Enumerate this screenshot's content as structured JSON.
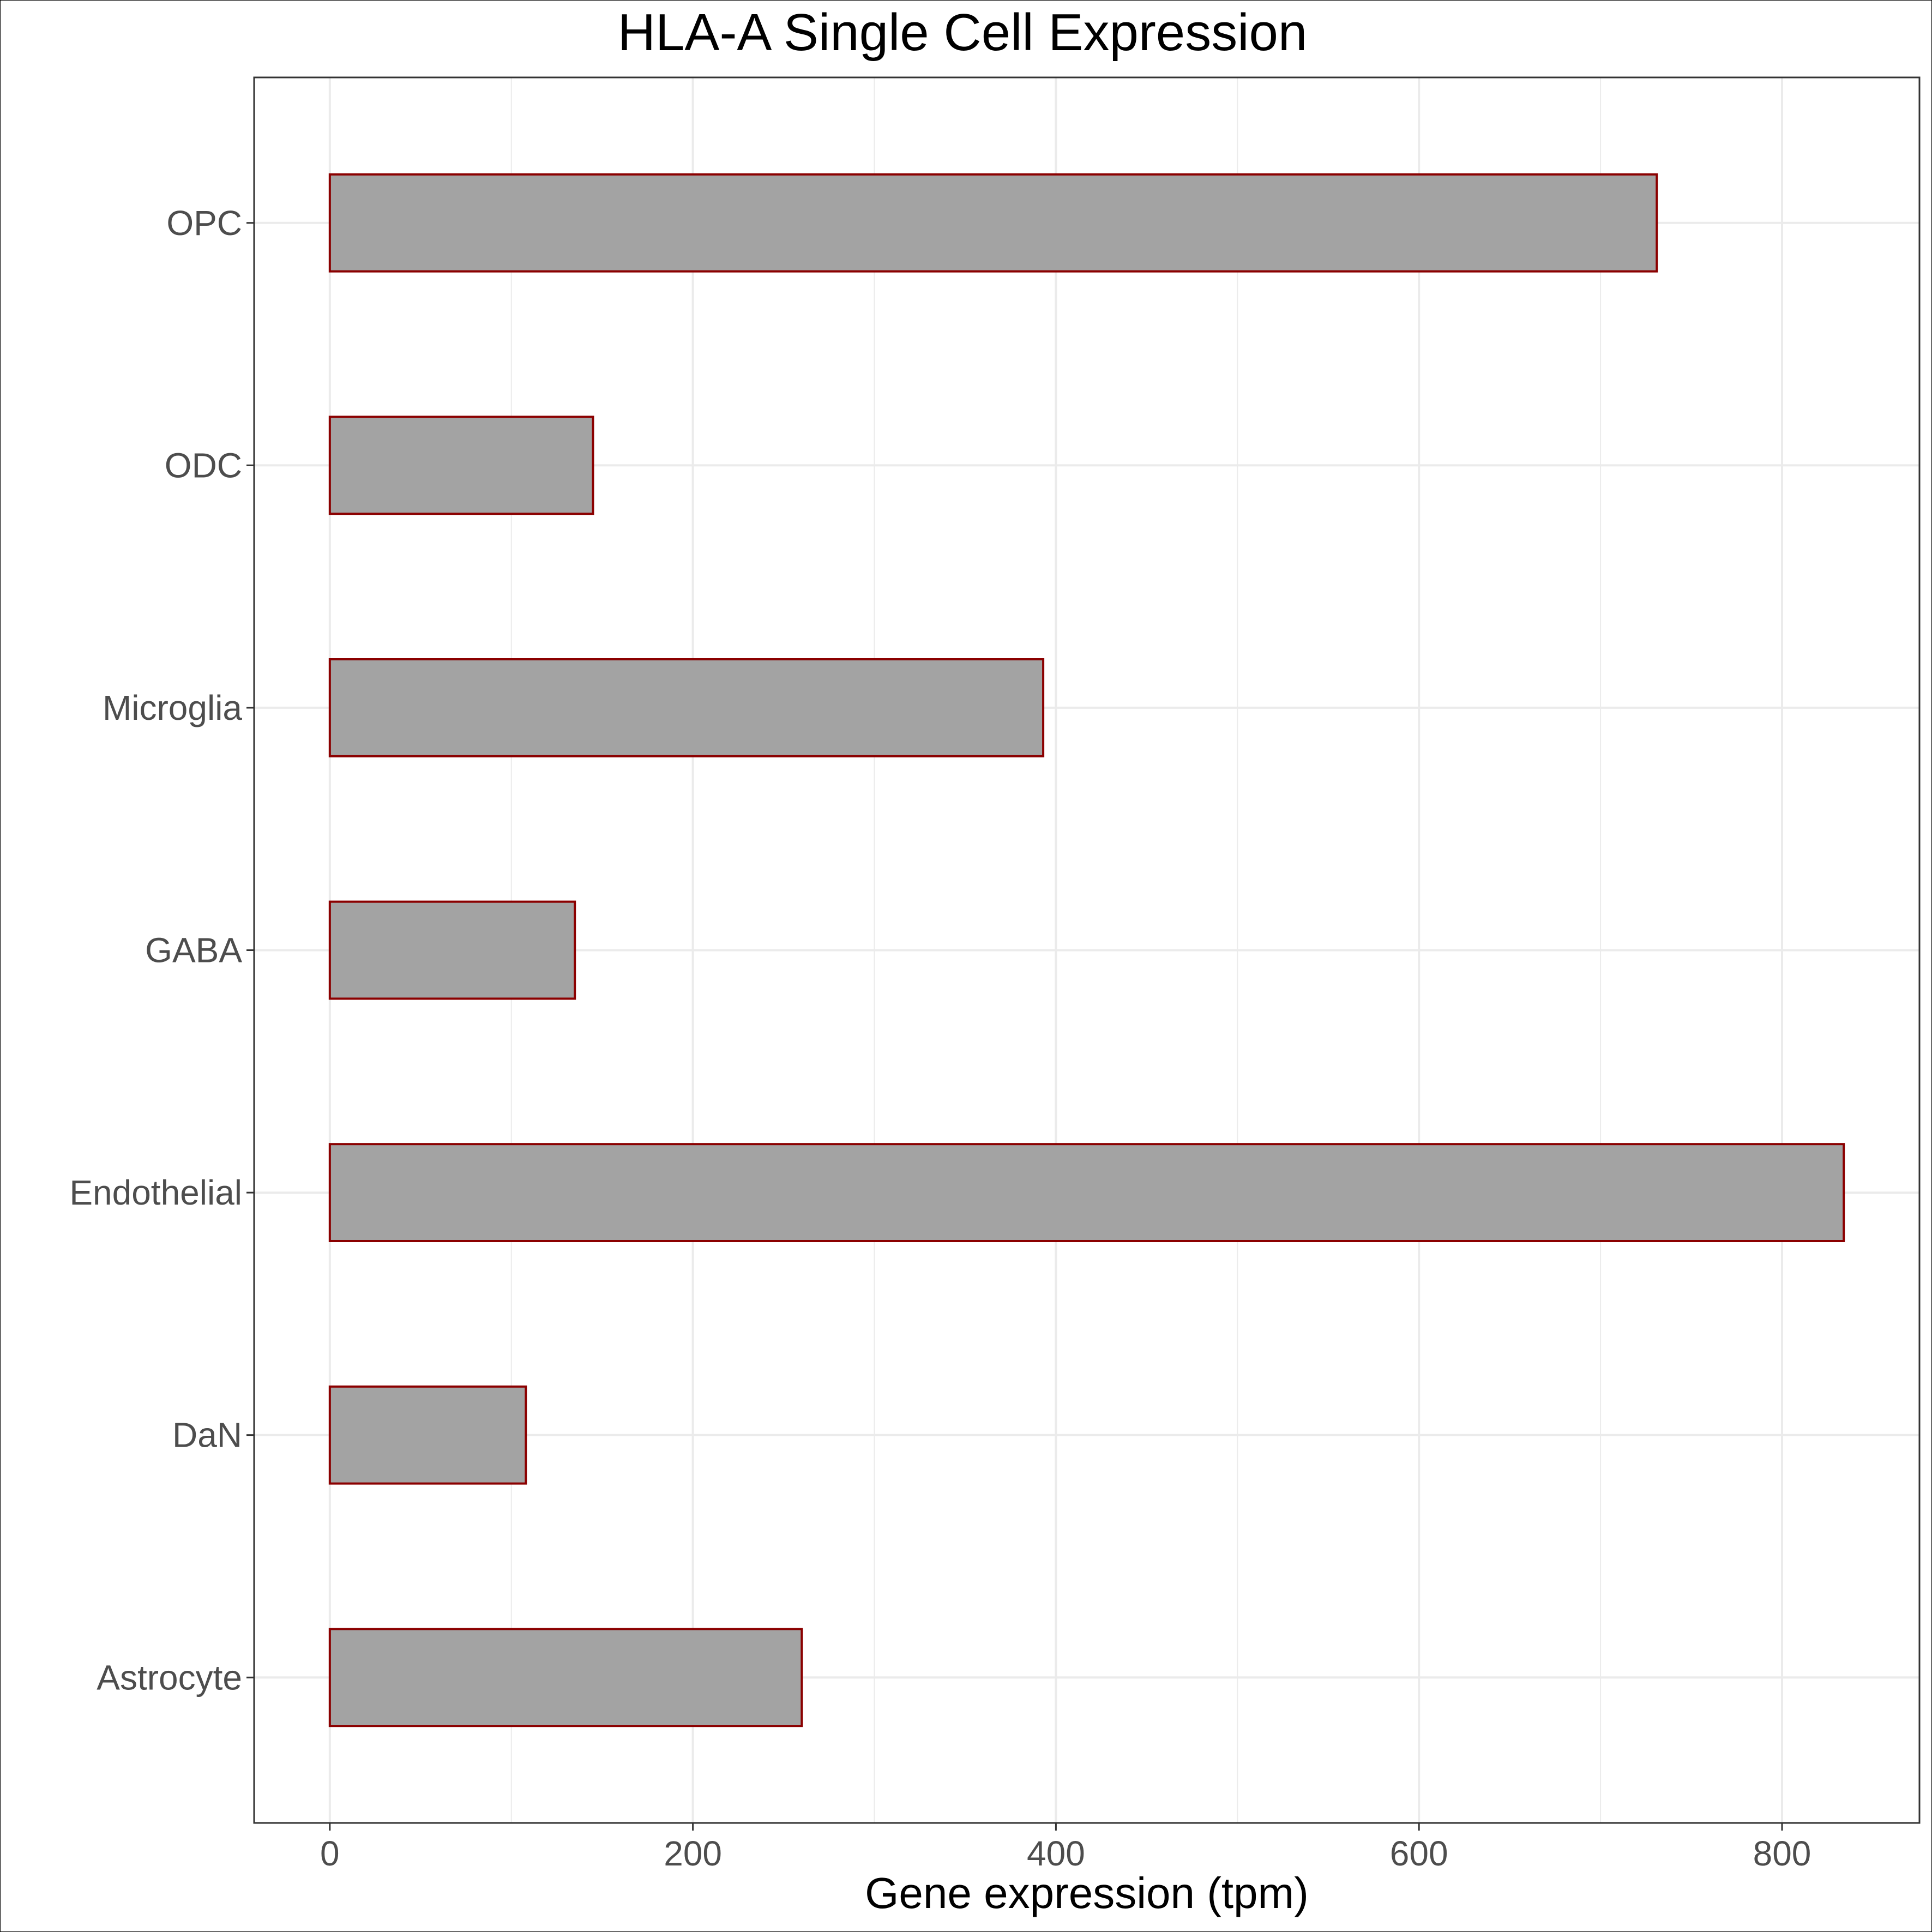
{
  "chart_data": {
    "type": "bar",
    "orientation": "horizontal",
    "title": "HLA-A Single Cell Expression",
    "xlabel": "Gene expression (tpm)",
    "ylabel": "",
    "categories": [
      "Astrocyte",
      "DaN",
      "Endothelial",
      "GABA",
      "Microglia",
      "ODC",
      "OPC"
    ],
    "values": [
      260,
      108,
      834,
      135,
      393,
      145,
      731
    ],
    "xlim": [
      -41.7,
      875.7
    ],
    "xticks": [
      0,
      200,
      400,
      600,
      800
    ],
    "xtick_labels": [
      "0",
      "200",
      "400",
      "600",
      "800"
    ],
    "grid": true,
    "legend": "none",
    "colors": {
      "bar_fill": "#a3a3a3",
      "bar_stroke": "#8b0000",
      "grid": "#ebebeb",
      "panel_border": "#333333",
      "tick_text": "#4d4d4d",
      "title_text": "#000000"
    }
  }
}
